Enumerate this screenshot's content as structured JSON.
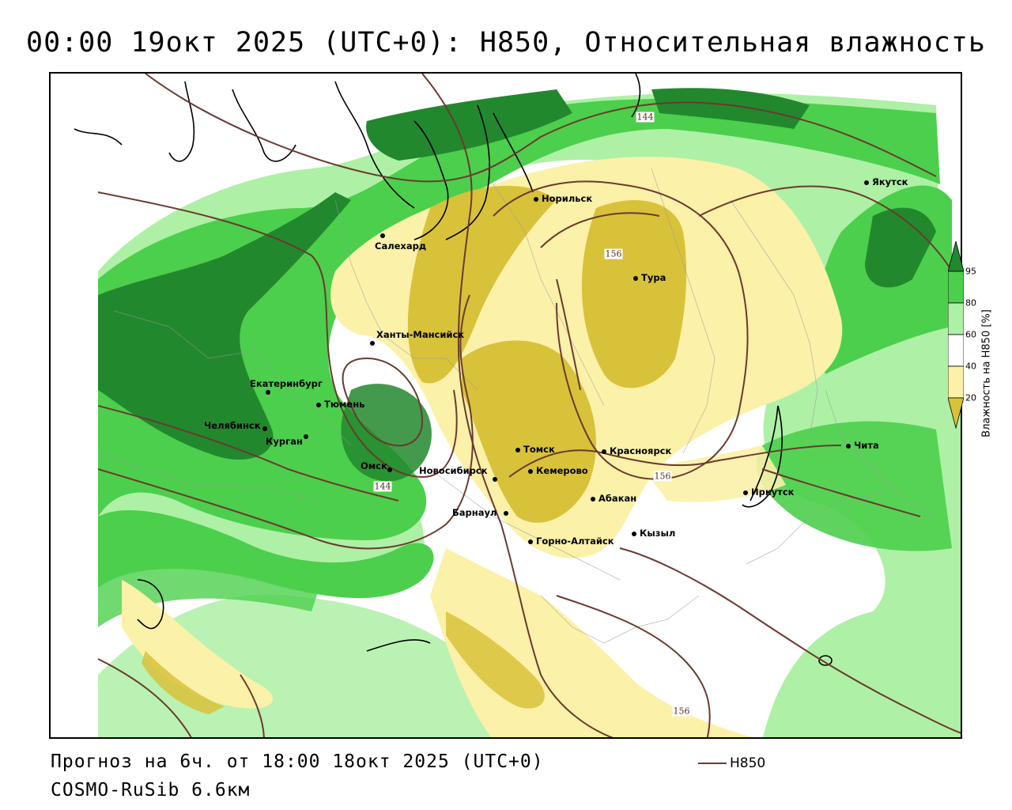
{
  "title": "00:00 19окт 2025 (UTC+0): H850, Относительная влажность",
  "footer": {
    "forecast": "Прогноз на 6ч. от 18:00 18окт 2025 (UTC+0)",
    "model": "COSMO-RuSib 6.6км"
  },
  "legend": {
    "line_label": "H850",
    "line_color": "#6b3a2e"
  },
  "colorbar": {
    "title": "Влажность на H850 [%]",
    "ticks": [
      "95",
      "80",
      "60",
      "40",
      "20"
    ],
    "colors": {
      "c95": "#22882e",
      "c80": "#4ccf4c",
      "c60": "#aef0a6",
      "c40": "#ffffff",
      "c20": "#fbf1a9",
      "c0": "#d8c23a"
    }
  },
  "cities": [
    {
      "name": "Якутск",
      "icon": "city-dot-icon"
    },
    {
      "name": "Норильск",
      "icon": "city-dot-icon"
    },
    {
      "name": "Салехард",
      "icon": "city-dot-icon"
    },
    {
      "name": "Тура",
      "icon": "city-dot-icon"
    },
    {
      "name": "Ханты-Мансийск",
      "icon": "city-dot-icon"
    },
    {
      "name": "Екатеринбург",
      "icon": "city-dot-icon"
    },
    {
      "name": "Тюмень",
      "icon": "city-dot-icon"
    },
    {
      "name": "Челябинск",
      "icon": "city-dot-icon"
    },
    {
      "name": "Курган",
      "icon": "city-dot-icon"
    },
    {
      "name": "Омск",
      "icon": "city-dot-icon"
    },
    {
      "name": "Новосибирск",
      "icon": "city-dot-icon"
    },
    {
      "name": "Томск",
      "icon": "city-dot-icon"
    },
    {
      "name": "Кемерово",
      "icon": "city-dot-icon"
    },
    {
      "name": "Красноярск",
      "icon": "city-dot-icon"
    },
    {
      "name": "Барнаул",
      "icon": "city-dot-icon"
    },
    {
      "name": "Абакан",
      "icon": "city-dot-icon"
    },
    {
      "name": "Горно-Алтайск",
      "icon": "city-dot-icon"
    },
    {
      "name": "Кызыл",
      "icon": "city-dot-icon"
    },
    {
      "name": "Иркутск",
      "icon": "city-dot-icon"
    },
    {
      "name": "Чита",
      "icon": "city-dot-icon"
    }
  ],
  "contour_labels": [
    "144",
    "156",
    "156",
    "144",
    "156"
  ]
}
